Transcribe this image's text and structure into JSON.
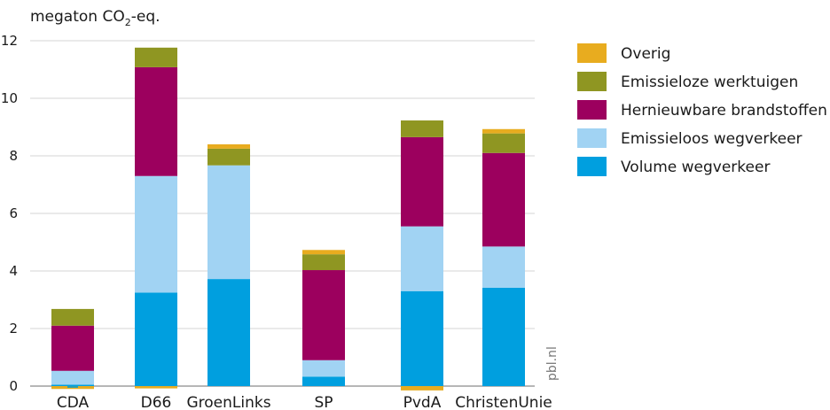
{
  "chart_data": {
    "type": "bar",
    "stacked": true,
    "unit_label": {
      "main": "megaton CO",
      "sub": "2",
      "suffix": "-eq."
    },
    "source": "pbl.nl",
    "categories": [
      "CDA",
      "D66",
      "GroenLinks",
      "SP",
      "PvdA",
      "ChristenUnie"
    ],
    "ylim": [
      0,
      12
    ],
    "yticks": [
      0,
      2,
      4,
      6,
      8,
      10,
      12
    ],
    "grid": true,
    "legend_position": "right",
    "series": [
      {
        "name": "Volume wegverkeer",
        "color": "#009fdf",
        "values": [
          0.05,
          3.25,
          3.72,
          0.33,
          3.3,
          3.42
        ]
      },
      {
        "name": "Emissieloos wegverkeer",
        "color": "#a1d3f3",
        "values": [
          0.48,
          4.05,
          3.95,
          0.57,
          2.25,
          1.43
        ]
      },
      {
        "name": "Hernieuwbare brandstoffen",
        "color": "#9c005e",
        "values": [
          1.57,
          3.78,
          0.0,
          3.13,
          3.1,
          3.25
        ]
      },
      {
        "name": "Emissieloze werktuigen",
        "color": "#8f9622",
        "values": [
          0.58,
          0.68,
          0.58,
          0.55,
          0.58,
          0.68
        ]
      },
      {
        "name": "Overig",
        "color": "#e8ac1f",
        "values": [
          -0.1,
          -0.08,
          0.15,
          0.15,
          -0.15,
          0.15
        ]
      }
    ],
    "extra_marks": [
      {
        "category": "CDA",
        "color": "#2a9fb0",
        "value": -0.06
      }
    ]
  }
}
